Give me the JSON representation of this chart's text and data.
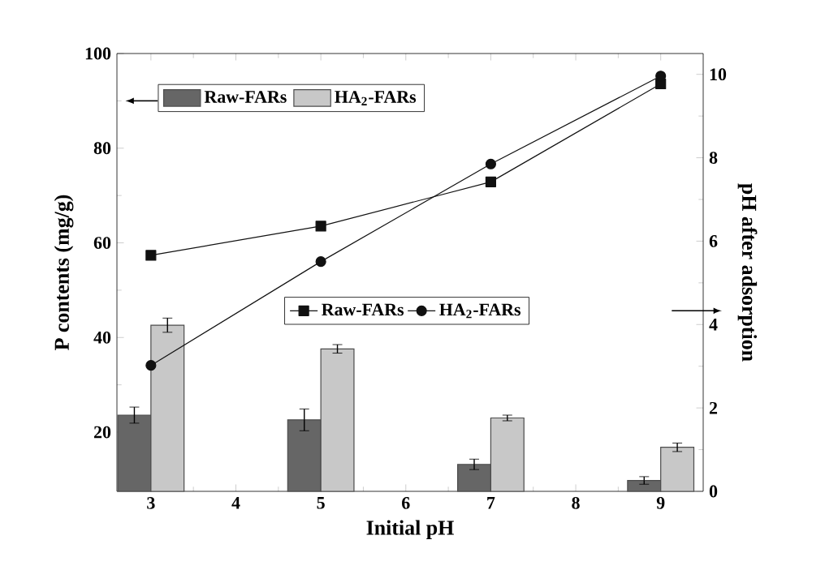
{
  "chart_data": {
    "type": "bar",
    "xlabel": "Initial pH",
    "ylabel": "P contents (mg/g)",
    "y2label": "pH after adsorption",
    "x": [
      3,
      5,
      7,
      9
    ],
    "series": [
      {
        "name": "Raw-FARs",
        "color": "#666666",
        "values": [
          23.6,
          22.6,
          13.2,
          9.8
        ],
        "errors": [
          1.7,
          2.3,
          1.1,
          0.8
        ]
      },
      {
        "name": "HA$_{2}$-FARs",
        "color": "#c8c8c8",
        "values": [
          42.6,
          37.6,
          23.0,
          16.8
        ],
        "errors": [
          1.5,
          0.9,
          0.6,
          0.9
        ]
      },
      {
        "name": "Raw-FARs",
        "type": "line",
        "axis": "y2",
        "color": "#111111",
        "marker": "square",
        "values": [
          5.66,
          6.36,
          7.42,
          9.77
        ]
      },
      {
        "name": "HA$_{2}$-FARs",
        "type": "line",
        "axis": "y2",
        "color": "#111111",
        "marker": "circle",
        "values": [
          3.02,
          5.51,
          7.85,
          9.96
        ]
      }
    ],
    "xlim": [
      2.6,
      9.5
    ],
    "xticks": [
      3,
      4,
      5,
      6,
      7,
      8,
      9
    ],
    "ylim": [
      7.5,
      100
    ],
    "yticks": [
      20,
      40,
      60,
      80,
      100
    ],
    "y2lim": [
      0,
      10.5
    ],
    "y2ticks": [
      0,
      2,
      4,
      6,
      8,
      10
    ],
    "legend": "top left",
    "grid": false
  }
}
